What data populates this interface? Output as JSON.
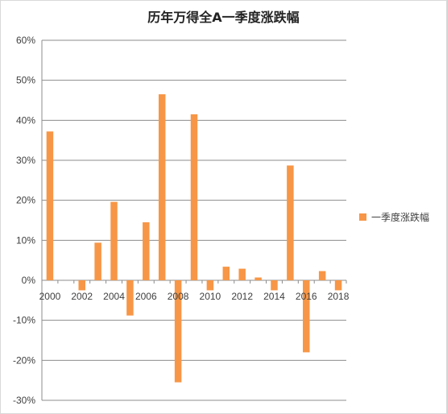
{
  "chart_data": {
    "type": "bar",
    "title": "历年万得全A一季度涨跌幅",
    "xlabel": "",
    "ylabel": "",
    "ylim": [
      -0.3,
      0.6
    ],
    "yticks": [
      0.6,
      0.5,
      0.4,
      0.3,
      0.2,
      0.1,
      0.0,
      -0.1,
      -0.2,
      -0.3
    ],
    "ytick_labels": [
      "60%",
      "50%",
      "40%",
      "30%",
      "20%",
      "10%",
      "0%",
      "-10%",
      "-20%",
      "-30%"
    ],
    "categories": [
      "2000",
      "2001",
      "2002",
      "2003",
      "2004",
      "2005",
      "2006",
      "2007",
      "2008",
      "2009",
      "2010",
      "2011",
      "2012",
      "2013",
      "2014",
      "2015",
      "2016",
      "2017",
      "2018"
    ],
    "xtick_labels": [
      "2000",
      "",
      "2002",
      "",
      "2004",
      "",
      "2006",
      "",
      "2008",
      "",
      "2010",
      "",
      "2012",
      "",
      "2014",
      "",
      "2016",
      "",
      "2018"
    ],
    "series": [
      {
        "name": "一季度涨跌幅",
        "color": "#f79646",
        "values": [
          0.372,
          null,
          -0.025,
          0.094,
          0.196,
          -0.088,
          0.145,
          0.465,
          -0.255,
          0.415,
          -0.025,
          0.034,
          0.029,
          0.007,
          -0.025,
          0.287,
          -0.18,
          0.023,
          -0.025
        ]
      }
    ],
    "grid": true,
    "legend": "right"
  }
}
